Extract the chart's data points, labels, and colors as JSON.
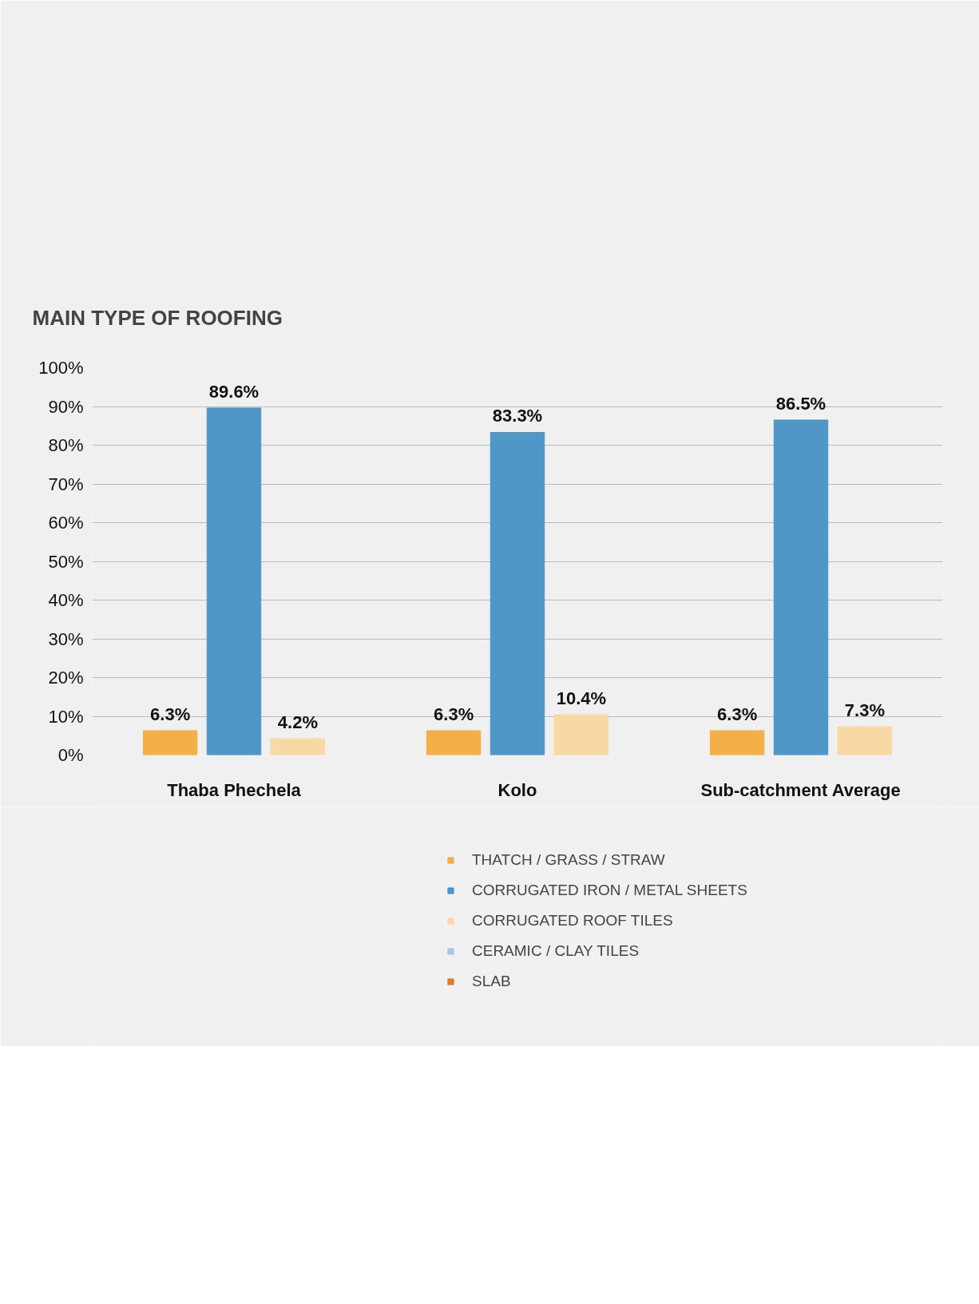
{
  "chart_data": {
    "type": "bar",
    "title": "MAIN TYPE OF ROOFING",
    "categories": [
      "Thaba Phechela",
      "Kolo",
      "Sub-catchment Average"
    ],
    "series": [
      {
        "name": "THATCH / GRASS / STRAW",
        "color": "#f2b046",
        "values": [
          6.3,
          6.3,
          6.3
        ],
        "value_labels": [
          "6.3%",
          "6.3%",
          "6.3%"
        ]
      },
      {
        "name": "CORRUGATED IRON / METAL SHEETS",
        "color": "#4e97c7",
        "values": [
          89.6,
          83.3,
          86.5
        ],
        "value_labels": [
          "89.6%",
          "83.3%",
          "86.5%"
        ]
      },
      {
        "name": "CORRUGATED ROOF TILES",
        "color": "#f8d8a4",
        "values": [
          4.2,
          10.4,
          7.3
        ],
        "value_labels": [
          "4.2%",
          "10.4%",
          "7.3%"
        ]
      },
      {
        "name": "CERAMIC / CLAY TILES",
        "color": "#a9c8e3",
        "values": [
          null,
          null,
          null
        ]
      },
      {
        "name": "SLAB",
        "color": "#e07b2e",
        "values": [
          null,
          null,
          null
        ]
      }
    ],
    "ylim": [
      0,
      100
    ],
    "yticks": [
      {
        "value": 0,
        "label": "0%"
      },
      {
        "value": 10,
        "label": "10%"
      },
      {
        "value": 20,
        "label": "20%"
      },
      {
        "value": 30,
        "label": "30%"
      },
      {
        "value": 40,
        "label": "40%"
      },
      {
        "value": 50,
        "label": "50%"
      },
      {
        "value": 60,
        "label": "60%"
      },
      {
        "value": 70,
        "label": "70%"
      },
      {
        "value": 80,
        "label": "80%"
      },
      {
        "value": 90,
        "label": "90%"
      },
      {
        "value": 100,
        "label": "100%"
      }
    ],
    "grid": "y",
    "legend": "bottom"
  }
}
